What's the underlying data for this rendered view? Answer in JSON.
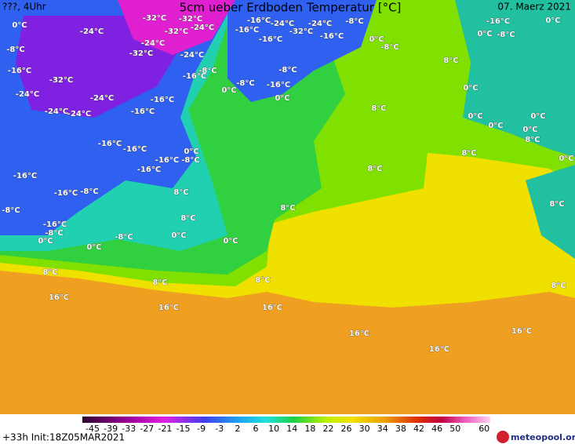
{
  "header": {
    "left": "???, 4Uhr",
    "title": "5cm ueber Erdboden Temperatur [°C]",
    "date": "07. Maerz 2021"
  },
  "map_labels": [
    "0°C",
    "-24°C",
    "-32°C",
    "-32°C",
    "-24°C",
    "-32°C",
    "-24°C",
    "-32°C",
    "-24°C",
    "-16°C",
    "-16°C",
    "-24°C",
    "-32°C",
    "-24°C",
    "-16°C",
    "-16°C",
    "-8°C",
    "0°C",
    "-8°C",
    "-16°C",
    "0°C",
    "0°C",
    "-8°C",
    "-8°C",
    "-16°C",
    "-32°C",
    "-24°C",
    "-24°C",
    "-24°C",
    "-24°C",
    "-16°C",
    "-16°C",
    "-8°C",
    "-16°C",
    "0°C",
    "-8°C",
    "-16°C",
    "-8°C",
    "0°C",
    "8°C",
    "0°C",
    "8°C",
    "0°C",
    "0°C",
    "0°C",
    "0°C",
    "8°C",
    "8°C",
    "0°C",
    "8°C",
    "-16°C",
    "-16°C",
    "-16°C",
    "-16°C",
    "-8°C",
    "0°C",
    "-16°C",
    "-16°C",
    "-8°C",
    "8°C",
    "8°C",
    "8°C",
    "-8°C",
    "-16°C",
    "-8°C",
    "0°C",
    "-8°C",
    "8°C",
    "0°C",
    "0°C",
    "0°C",
    "8°C",
    "8°C",
    "8°C",
    "8°C",
    "16°C",
    "16°C",
    "16°C",
    "16°C",
    "16°C",
    "16°C"
  ],
  "colorbar": {
    "ticks": [
      -45,
      -39,
      -33,
      -27,
      -21,
      -15,
      -9,
      -3,
      2,
      6,
      10,
      14,
      18,
      22,
      26,
      30,
      34,
      38,
      42,
      46,
      50,
      60
    ]
  },
  "footer": {
    "run": "+33h Init:18Z05MAR2021",
    "logo": "meteopool.org"
  }
}
